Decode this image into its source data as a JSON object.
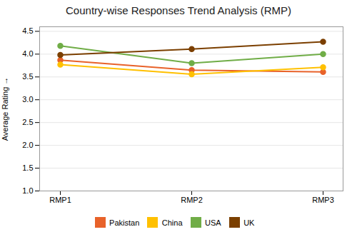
{
  "chart_data": {
    "type": "line",
    "title": "Country-wise Responses Trend Analysis (RMP)",
    "ylabel": "Average Rating",
    "categories": [
      "RMP1",
      "RMP2",
      "RMP3"
    ],
    "series": [
      {
        "name": "Pakistan",
        "color": "#E8622A",
        "marker": "circle",
        "values": [
          3.87,
          3.65,
          3.61
        ]
      },
      {
        "name": "China",
        "color": "#FFC000",
        "marker": "circle",
        "values": [
          3.77,
          3.56,
          3.71
        ]
      },
      {
        "name": "USA",
        "color": "#70AD47",
        "marker": "circle",
        "values": [
          4.18,
          3.8,
          4.0
        ]
      },
      {
        "name": "UK",
        "color": "#7B3F00",
        "marker": "circle",
        "values": [
          3.98,
          4.11,
          4.27
        ]
      }
    ],
    "ylim": [
      1.0,
      4.6
    ],
    "yticks": [
      1,
      1.5,
      2,
      2.5,
      3,
      3.5,
      4,
      4.5
    ],
    "grid": true,
    "legend": "bottom"
  }
}
